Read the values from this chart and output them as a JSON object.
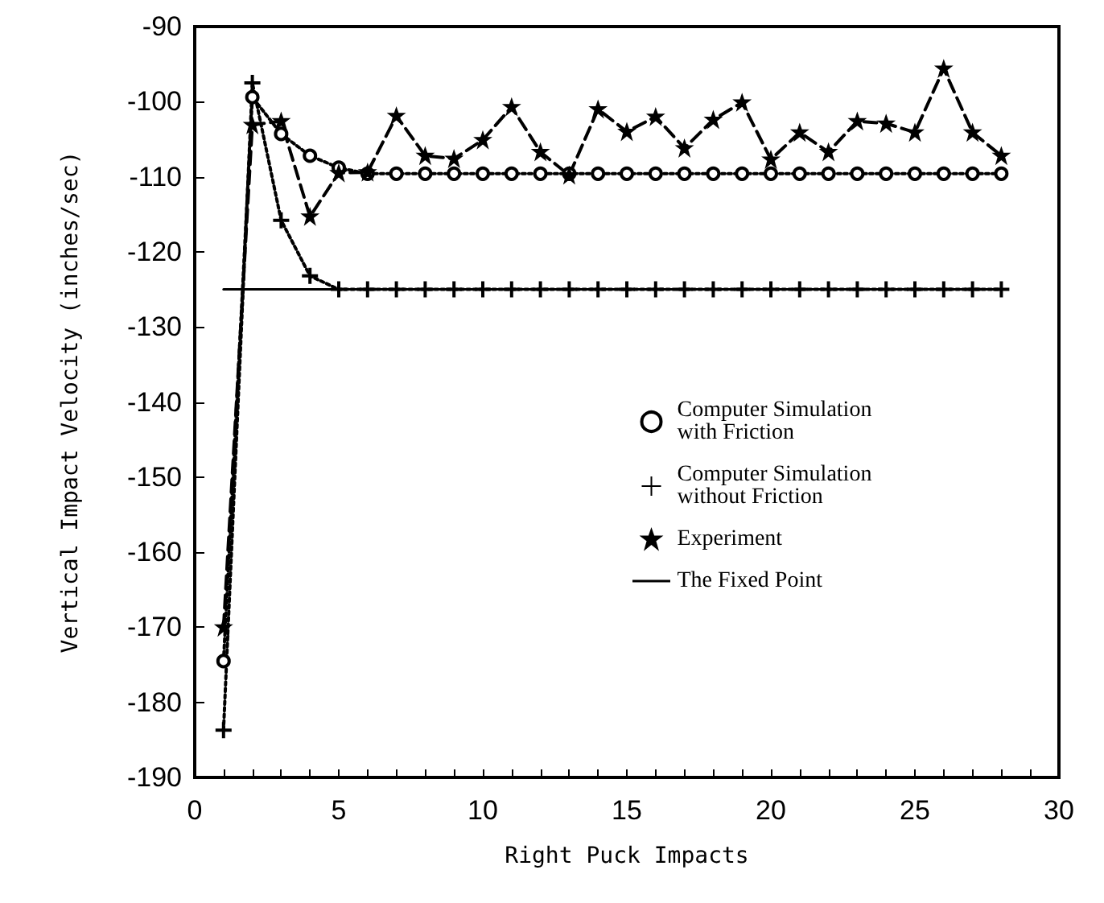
{
  "chart_data": {
    "type": "line",
    "xlabel": "Right Puck Impacts",
    "ylabel": "Vertical Impact Velocity (inches/sec)",
    "xlim": [
      0,
      30
    ],
    "xticks": [
      0,
      5,
      10,
      15,
      20,
      25,
      30
    ],
    "ylim": [
      -190,
      -90
    ],
    "yticks": [
      -190,
      -180,
      -170,
      -160,
      -150,
      -140,
      -130,
      -120,
      -110,
      -100,
      -90
    ],
    "grid": false,
    "legend": "right",
    "series": [
      {
        "name": "Computer Simulation\nwith Friction",
        "color": "#000000",
        "marker": "circle",
        "line_style": "dotted",
        "x": [
          1,
          2,
          3,
          4,
          5,
          6,
          7,
          8,
          9,
          10,
          11,
          12,
          13,
          14,
          15,
          16,
          17,
          18,
          19,
          20,
          21,
          22,
          23,
          24,
          25,
          26,
          27,
          28
        ],
        "values": [
          -174.5,
          -99.4,
          -104.3,
          -107.2,
          -108.8,
          -109.6,
          -109.6,
          -109.6,
          -109.6,
          -109.6,
          -109.6,
          -109.6,
          -109.6,
          -109.6,
          -109.6,
          -109.6,
          -109.6,
          -109.6,
          -109.6,
          -109.6,
          -109.6,
          -109.6,
          -109.6,
          -109.6,
          -109.6,
          -109.6,
          -109.6,
          -109.6
        ]
      },
      {
        "name": "Computer Simulation\nwithout Friction",
        "color": "#000000",
        "marker": "cross",
        "line_style": "dotted",
        "x": [
          1,
          2,
          3,
          4,
          5,
          6,
          7,
          8,
          9,
          10,
          11,
          12,
          13,
          14,
          15,
          16,
          17,
          18,
          19,
          20,
          21,
          22,
          23,
          24,
          25,
          26,
          27,
          28
        ],
        "values": [
          -183.7,
          -97.5,
          -115.8,
          -123.2,
          -125,
          -125,
          -125,
          -125,
          -125,
          -125,
          -125,
          -125,
          -125,
          -125,
          -125,
          -125,
          -125,
          -125,
          -125,
          -125,
          -125,
          -125,
          -125,
          -125,
          -125,
          -125,
          -125,
          -125
        ]
      },
      {
        "name": "Experiment",
        "color": "#000000",
        "marker": "star",
        "line_style": "dashed",
        "x": [
          1,
          2,
          3,
          4,
          5,
          6,
          7,
          8,
          9,
          10,
          11,
          12,
          13,
          14,
          15,
          16,
          17,
          18,
          19,
          20,
          21,
          22,
          23,
          24,
          25,
          26,
          27,
          28
        ],
        "values": [
          -170,
          -103.1,
          -102.6,
          -115.3,
          -109.5,
          -109.4,
          -101.9,
          -107.2,
          -107.6,
          -105.1,
          -100.7,
          -106.7,
          -109.8,
          -101,
          -104,
          -102,
          -106.2,
          -102.4,
          -100.1,
          -107.7,
          -104.1,
          -106.7,
          -102.6,
          -102.9,
          -104.1,
          -95.6,
          -104.1,
          -107.2
        ]
      },
      {
        "name": "The Fixed Point",
        "color": "#000000",
        "marker": "none",
        "line_style": "solid",
        "x": [
          1,
          28
        ],
        "values": [
          -125,
          -125
        ]
      }
    ]
  }
}
